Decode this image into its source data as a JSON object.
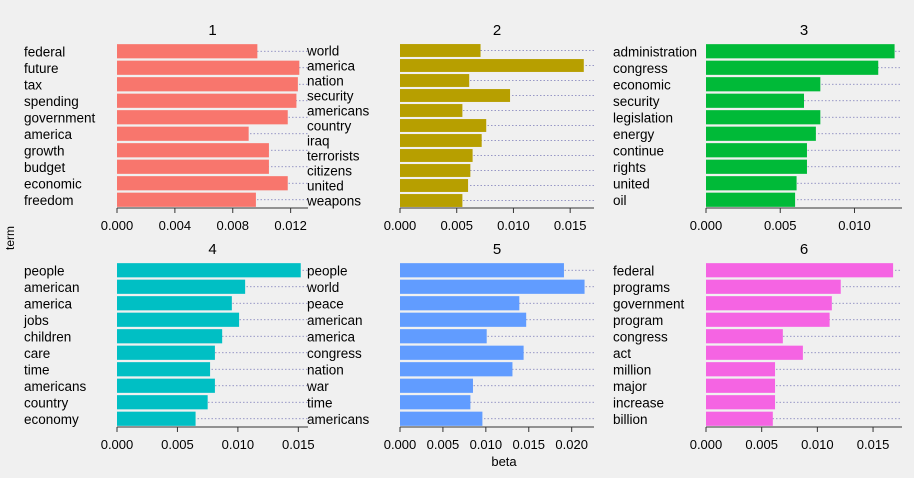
{
  "xlabel": "beta",
  "ylabel": "term",
  "colors": {
    "background": "#f0f0f0",
    "grid": "#7a7ab8",
    "axis": "#333333",
    "text": "#000000"
  },
  "chart_data": [
    {
      "type": "bar",
      "title": "1",
      "color": "#f8766d",
      "categories": [
        "federal",
        "future",
        "tax",
        "spending",
        "government",
        "america",
        "growth",
        "budget",
        "economic",
        "freedom"
      ],
      "values": [
        0.0097,
        0.0126,
        0.0125,
        0.0124,
        0.0118,
        0.0091,
        0.0105,
        0.0105,
        0.0118,
        0.0096
      ],
      "xlim": [
        0,
        0.0132
      ],
      "xticks": [
        0,
        0.004,
        0.008,
        0.012
      ],
      "xtick_labels": [
        "0.000",
        "0.004",
        "0.008",
        "0.012"
      ]
    },
    {
      "type": "bar",
      "title": "2",
      "color": "#b79f00",
      "categories": [
        "world",
        "america",
        "nation",
        "security",
        "americans",
        "country",
        "iraq",
        "terrorists",
        "citizens",
        "united",
        "weapons"
      ],
      "values": [
        0.0071,
        0.0162,
        0.0061,
        0.0097,
        0.0055,
        0.0076,
        0.0072,
        0.0064,
        0.0062,
        0.006,
        0.0055
      ],
      "xlim": [
        0,
        0.0171
      ],
      "xticks": [
        0,
        0.005,
        0.01,
        0.015
      ],
      "xtick_labels": [
        "0.000",
        "0.005",
        "0.010",
        "0.015"
      ]
    },
    {
      "type": "bar",
      "title": "3",
      "color": "#00ba38",
      "categories": [
        "administration",
        "congress",
        "economic",
        "security",
        "legislation",
        "energy",
        "continue",
        "rights",
        "united",
        "oil"
      ],
      "values": [
        0.0127,
        0.0116,
        0.0077,
        0.0066,
        0.0077,
        0.0074,
        0.0068,
        0.0068,
        0.0061,
        0.006
      ],
      "xlim": [
        0,
        0.0132
      ],
      "xticks": [
        0,
        0.005,
        0.01
      ],
      "xtick_labels": [
        "0.000",
        "0.005",
        "0.010"
      ]
    },
    {
      "type": "bar",
      "title": "4",
      "color": "#00bfc4",
      "categories": [
        "people",
        "american",
        "america",
        "jobs",
        "children",
        "care",
        "time",
        "americans",
        "country",
        "economy"
      ],
      "values": [
        0.0152,
        0.0106,
        0.0095,
        0.0101,
        0.0087,
        0.0081,
        0.0077,
        0.0081,
        0.0075,
        0.0065
      ],
      "xlim": [
        0,
        0.0158
      ],
      "xticks": [
        0,
        0.005,
        0.01,
        0.015
      ],
      "xtick_labels": [
        "0.000",
        "0.005",
        "0.010",
        "0.015"
      ]
    },
    {
      "type": "bar",
      "title": "5",
      "color": "#619cff",
      "categories": [
        "people",
        "world",
        "peace",
        "american",
        "america",
        "congress",
        "nation",
        "war",
        "time",
        "americans"
      ],
      "values": [
        0.0191,
        0.0215,
        0.0139,
        0.0147,
        0.0101,
        0.0144,
        0.0131,
        0.0085,
        0.0082,
        0.0096
      ],
      "xlim": [
        0,
        0.0226
      ],
      "xticks": [
        0,
        0.005,
        0.01,
        0.015,
        0.02
      ],
      "xtick_labels": [
        "0.000",
        "0.005",
        "0.010",
        "0.015",
        "0.020"
      ]
    },
    {
      "type": "bar",
      "title": "6",
      "color": "#f564e3",
      "categories": [
        "federal",
        "programs",
        "government",
        "program",
        "congress",
        "act",
        "million",
        "major",
        "increase",
        "billion"
      ],
      "values": [
        0.0168,
        0.0121,
        0.0113,
        0.0111,
        0.0069,
        0.0087,
        0.0062,
        0.0062,
        0.0062,
        0.006
      ],
      "xlim": [
        0,
        0.0176
      ],
      "xticks": [
        0,
        0.005,
        0.01,
        0.015
      ],
      "xtick_labels": [
        "0.000",
        "0.005",
        "0.010",
        "0.015"
      ]
    }
  ]
}
